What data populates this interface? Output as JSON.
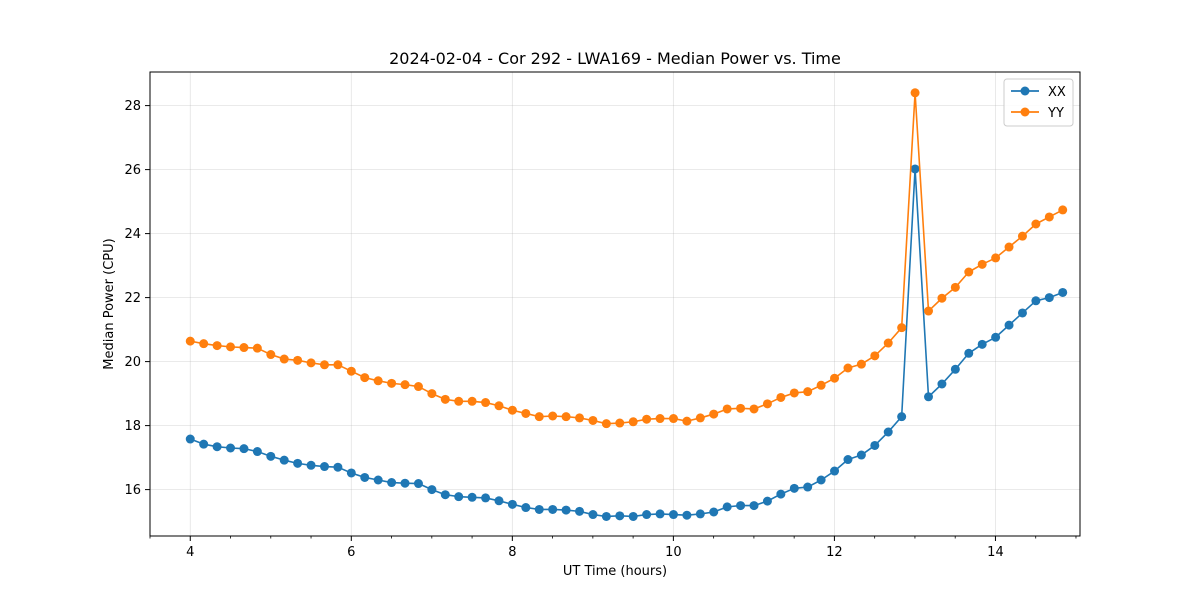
{
  "chart_data": {
    "type": "line",
    "title": "2024-02-04 - Cor 292 - LWA169 - Median Power vs. Time",
    "xlabel": "UT Time (hours)",
    "ylabel": "Median Power (CPU)",
    "xlim": [
      3.5,
      15.05
    ],
    "ylim": [
      14.55,
      29.05
    ],
    "xticks": [
      4,
      6,
      8,
      10,
      12,
      14
    ],
    "xtick_labels": [
      "4",
      "6",
      "8",
      "10",
      "12",
      "14"
    ],
    "yticks": [
      16,
      18,
      20,
      22,
      24,
      26,
      28
    ],
    "ytick_labels": [
      "16",
      "18",
      "20",
      "22",
      "24",
      "26",
      "28"
    ],
    "grid": true,
    "legend": "top-right",
    "x_start": 4.0,
    "x_step": 0.1667,
    "series": [
      {
        "name": "XX",
        "color": "#1f77b4",
        "values": [
          17.58,
          17.42,
          17.34,
          17.3,
          17.28,
          17.19,
          17.04,
          16.92,
          16.82,
          16.76,
          16.72,
          16.7,
          16.52,
          16.38,
          16.3,
          16.22,
          16.2,
          16.19,
          16.0,
          15.84,
          15.78,
          15.76,
          15.74,
          15.65,
          15.54,
          15.44,
          15.38,
          15.38,
          15.36,
          15.32,
          15.22,
          15.16,
          15.18,
          15.16,
          15.22,
          15.24,
          15.22,
          15.2,
          15.24,
          15.3,
          15.46,
          15.5,
          15.5,
          15.64,
          15.86,
          16.04,
          16.08,
          16.3,
          16.58,
          16.94,
          17.08,
          17.38,
          17.8,
          18.28,
          26.02,
          18.9,
          19.3,
          19.76,
          20.26,
          20.54,
          20.76,
          21.14,
          21.52,
          21.9,
          22.0,
          22.16
        ]
      },
      {
        "name": "YY",
        "color": "#ff7f0e",
        "values": [
          20.64,
          20.56,
          20.5,
          20.46,
          20.44,
          20.42,
          20.22,
          20.08,
          20.04,
          19.96,
          19.9,
          19.9,
          19.7,
          19.5,
          19.4,
          19.32,
          19.28,
          19.22,
          19.0,
          18.82,
          18.76,
          18.76,
          18.72,
          18.62,
          18.48,
          18.38,
          18.28,
          18.3,
          18.28,
          18.24,
          18.16,
          18.06,
          18.08,
          18.12,
          18.2,
          18.22,
          18.22,
          18.14,
          18.24,
          18.36,
          18.52,
          18.54,
          18.52,
          18.68,
          18.88,
          19.02,
          19.06,
          19.26,
          19.48,
          19.8,
          19.92,
          20.18,
          20.58,
          21.06,
          28.4,
          21.58,
          21.98,
          22.32,
          22.8,
          23.04,
          23.24,
          23.58,
          23.92,
          24.3,
          24.52,
          24.74
        ]
      }
    ]
  }
}
